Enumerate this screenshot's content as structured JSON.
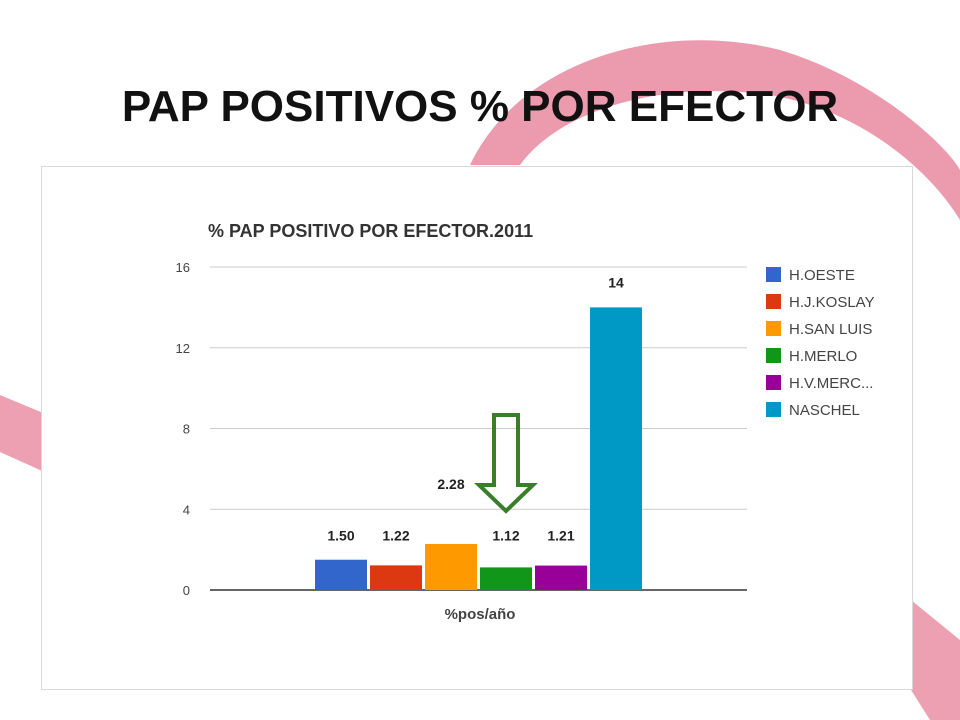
{
  "slide": {
    "title": "PAP POSITIVOS % POR EFECTOR"
  },
  "colors": {
    "ribbon": "#e9889f",
    "grid": "#cccccc",
    "axis": "#333333",
    "arrow": "#3a7d2a"
  },
  "chart_data": {
    "type": "bar",
    "title": "% PAP POSITIVO POR EFECTOR.2011",
    "xlabel": "%pos/año",
    "ylabel": "",
    "ylim": [
      0,
      16
    ],
    "yticks": [
      0,
      4,
      8,
      12,
      16
    ],
    "grid": true,
    "legend_position": "right",
    "categories": [
      "%pos/año"
    ],
    "series": [
      {
        "name": "H.OESTE",
        "values": [
          1.5
        ],
        "label": "1.50",
        "color": "#3366cc"
      },
      {
        "name": "H.J.KOSLAY",
        "values": [
          1.22
        ],
        "label": "1.22",
        "color": "#dc3912"
      },
      {
        "name": "H.SAN LUIS",
        "values": [
          2.28
        ],
        "label": "2.28",
        "color": "#ff9900"
      },
      {
        "name": "H.MERLO",
        "values": [
          1.12
        ],
        "label": "1.12",
        "color": "#109618"
      },
      {
        "name": "H.V.MERC...",
        "values": [
          1.21
        ],
        "label": "1.21",
        "color": "#990099"
      },
      {
        "name": "NASCHEL",
        "values": [
          14
        ],
        "label": "14",
        "color": "#0099c6"
      }
    ],
    "annotation": {
      "type": "down-arrow",
      "over_series": "H.MERLO"
    }
  }
}
